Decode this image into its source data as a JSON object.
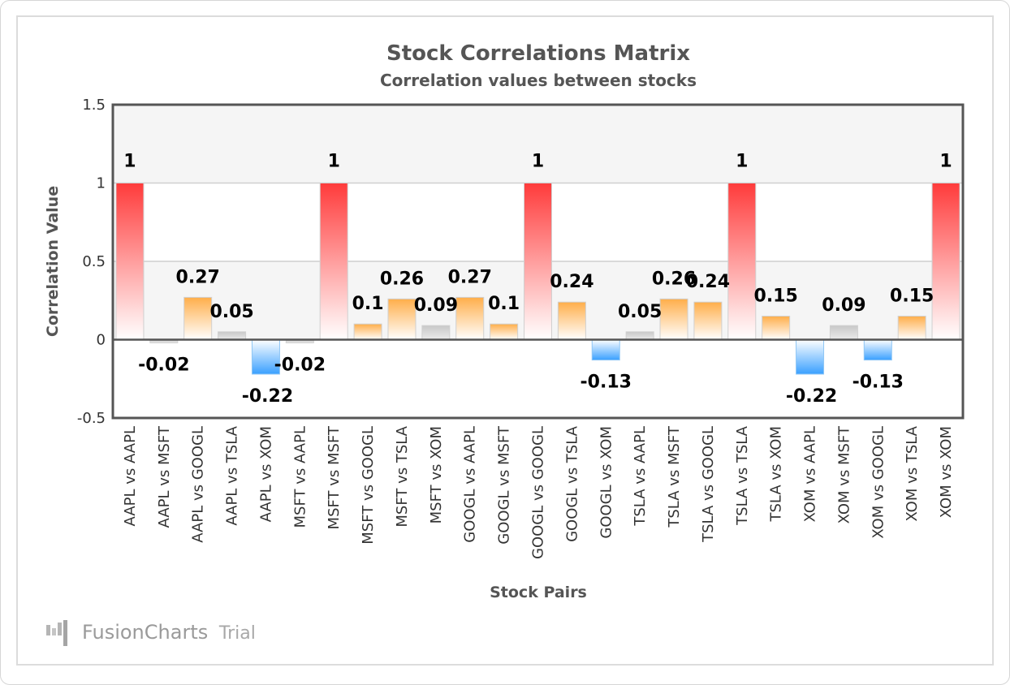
{
  "chart_data": {
    "type": "bar",
    "title": "Stock Correlations Matrix",
    "subtitle": "Correlation values between stocks",
    "xlabel": "Stock Pairs",
    "ylabel": "Correlation Value",
    "ylim": [
      -0.5,
      1.5
    ],
    "yticks": [
      -0.5,
      0,
      0.5,
      1,
      1.5
    ],
    "ytick_labels": [
      "-0.5",
      "0",
      "0.5",
      "1",
      "1.5"
    ],
    "grid": true,
    "categories": [
      "AAPL vs AAPL",
      "AAPL vs MSFT",
      "AAPL vs GOOGL",
      "AAPL vs TSLA",
      "AAPL vs XOM",
      "MSFT vs AAPL",
      "MSFT vs MSFT",
      "MSFT vs GOOGL",
      "MSFT vs TSLA",
      "MSFT vs XOM",
      "GOOGL vs AAPL",
      "GOOGL vs MSFT",
      "GOOGL vs GOOGL",
      "GOOGL vs TSLA",
      "GOOGL vs XOM",
      "TSLA vs AAPL",
      "TSLA vs MSFT",
      "TSLA vs GOOGL",
      "TSLA vs TSLA",
      "TSLA vs XOM",
      "XOM vs AAPL",
      "XOM vs MSFT",
      "XOM vs GOOGL",
      "XOM vs TSLA",
      "XOM vs XOM"
    ],
    "values": [
      1,
      -0.02,
      0.27,
      0.05,
      -0.22,
      -0.02,
      1,
      0.1,
      0.26,
      0.09,
      0.27,
      0.1,
      1,
      0.24,
      -0.13,
      0.05,
      0.26,
      0.24,
      1,
      0.15,
      -0.22,
      0.09,
      -0.13,
      0.15,
      1
    ],
    "value_labels": [
      "1",
      "-0.02",
      "0.27",
      "0.05",
      "-0.22",
      "-0.02",
      "1",
      "0.1",
      "0.26",
      "0.09",
      "0.27",
      "0.1",
      "1",
      "0.24",
      "-0.13",
      "0.05",
      "0.26",
      "0.24",
      "1",
      "0.15",
      "-0.22",
      "0.09",
      "-0.13",
      "0.15",
      "1"
    ],
    "colors": {
      "high": "#ff3b3b",
      "medium": "#ffae4a",
      "low": "#c8c8c8",
      "negative": "#3aa0ff"
    }
  },
  "watermark": {
    "brand": "FusionCharts",
    "suffix": "Trial"
  }
}
